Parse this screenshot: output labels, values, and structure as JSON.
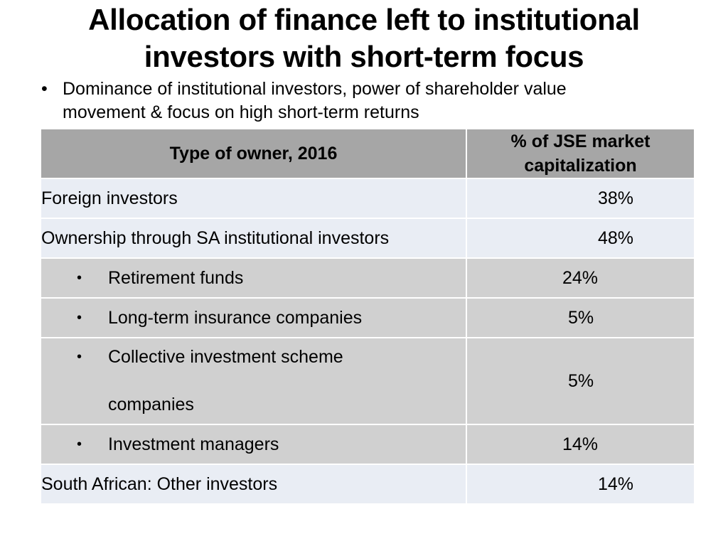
{
  "slide": {
    "title_line1": "Allocation of finance left to institutional",
    "title_line2": "investors with short-term focus",
    "bullet_line1": "Dominance of institutional investors, power of shareholder value",
    "bullet_line2": "movement & focus on high short-term returns"
  },
  "table": {
    "header_col1": "Type of owner, 2016",
    "header_col2_line1": "% of JSE market",
    "header_col2_line2": "capitalization",
    "rows": [
      {
        "label": "Foreign investors",
        "value": "38%"
      },
      {
        "label": "Ownership through SA institutional investors",
        "value": "48%"
      },
      {
        "label": "Retirement funds",
        "value": "24%"
      },
      {
        "label": "Long-term insurance companies",
        "value": "5%"
      },
      {
        "label_line1": "Collective investment scheme",
        "label_line2": "companies",
        "value": "5%"
      },
      {
        "label": "Investment managers",
        "value": "14%"
      },
      {
        "label": "South African: Other investors",
        "value": "14%"
      }
    ]
  }
}
